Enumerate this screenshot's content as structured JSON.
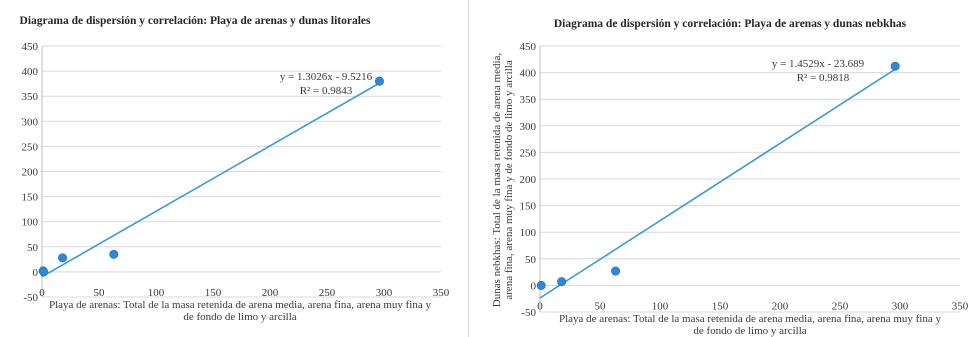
{
  "chart_data": [
    {
      "type": "scatter",
      "title": "Diagrama de dispersión y correlación: Playa de arenas y dunas litorales",
      "xlabel": [
        "Playa de arenas: Total de la masa retenida de arena media, arena fina, arena muy fina y",
        "de fondo de limo y arcilla"
      ],
      "ylabel": [],
      "xlim": [
        0,
        350
      ],
      "ylim": [
        -50,
        450
      ],
      "xticks": [
        "0",
        "50",
        "100",
        "150",
        "200",
        "250",
        "300",
        "350"
      ],
      "yticks": [
        "-50",
        "0",
        "50",
        "100",
        "150",
        "200",
        "250",
        "300",
        "350",
        "400",
        "450"
      ],
      "grid": true,
      "series": [
        {
          "color": "#2E86DE",
          "points": [
            [
              1,
              2
            ],
            [
              1.5,
              0
            ],
            [
              18,
              28
            ],
            [
              63,
              35
            ],
            [
              296,
              380
            ]
          ]
        }
      ],
      "trendline": {
        "slope": 1.3026,
        "intercept": -9.5216,
        "x_range": [
          0,
          296
        ],
        "color": "#3B9AD9",
        "equation": "y = 1.3026x - 9.5216",
        "r2": "R² = 0.9843"
      }
    },
    {
      "type": "scatter",
      "title": "Diagrama de dispersión y correlación: Playa de arenas y dunas nebkhas",
      "xlabel": [
        "Playa de arenas: Total de la masa retenida de arena media, arena fina, arena muy fina y",
        "de fondo de limo y arcilla"
      ],
      "ylabel": [
        "Dunas nebkhas: Total de la masa retenida de arena media,",
        "arena fina, arena muy fina y de fondo de limo y arcilla"
      ],
      "xlim": [
        0,
        350
      ],
      "ylim": [
        -50,
        450
      ],
      "xticks": [
        "0",
        "50",
        "100",
        "150",
        "200",
        "250",
        "300",
        "350"
      ],
      "yticks": [
        "-50",
        "0",
        "50",
        "100",
        "150",
        "200",
        "250",
        "300",
        "350",
        "400",
        "450"
      ],
      "grid": true,
      "series": [
        {
          "color": "#2E86DE",
          "points": [
            [
              1,
              0
            ],
            [
              18,
              7
            ],
            [
              63,
              27
            ],
            [
              296,
              412
            ]
          ]
        }
      ],
      "trendline": {
        "slope": 1.4529,
        "intercept": -23.689,
        "x_range": [
          0,
          296
        ],
        "color": "#3B9AD9",
        "equation": "y = 1.4529x - 23.689",
        "r2": "R² = 0.9818"
      }
    }
  ]
}
